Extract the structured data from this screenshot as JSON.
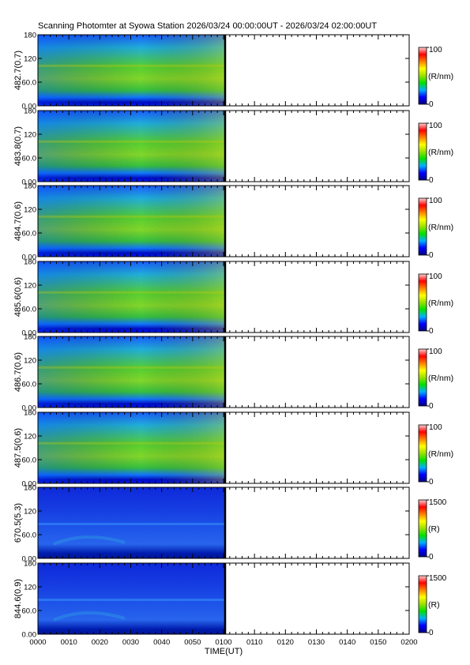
{
  "title": "Scanning Photomter at Syowa Station 2026/03/24 00:00:00UT - 2026/03/24 02:00:00UT",
  "chart_data": {
    "type": "heatmap",
    "xlabel": "TIME(UT)",
    "x_ticks": [
      "0000",
      "0010",
      "0020",
      "0030",
      "0040",
      "0050",
      "0100",
      "0110",
      "0120",
      "0130",
      "0140",
      "0150",
      "0200"
    ],
    "xlim": [
      "0000",
      "0200"
    ],
    "data_extent_end": "0100",
    "ylim": [
      0,
      180
    ],
    "y_ticks": [
      "0.00",
      "60.0",
      "120",
      "180"
    ],
    "colormap": [
      "#000080",
      "#0000ff",
      "#00b0ff",
      "#00e000",
      "#9ae000",
      "#ffff00",
      "#ff8000",
      "#ff0000",
      "#ffd0d0"
    ],
    "panels": [
      {
        "label": "482.7(0.7)",
        "unit": "(R/nm)",
        "cmin": "0",
        "cmax": "100",
        "style": "green"
      },
      {
        "label": "483.8(0.7)",
        "unit": "(R/nm)",
        "cmin": "0",
        "cmax": "100",
        "style": "green"
      },
      {
        "label": "484.7(0.6)",
        "unit": "(R/nm)",
        "cmin": "0",
        "cmax": "100",
        "style": "green"
      },
      {
        "label": "485.6(0.6)",
        "unit": "(R/nm)",
        "cmin": "0",
        "cmax": "100",
        "style": "green"
      },
      {
        "label": "486.7(0.6)",
        "unit": "(R/nm)",
        "cmin": "0",
        "cmax": "100",
        "style": "green"
      },
      {
        "label": "487.5(0.6)",
        "unit": "(R/nm)",
        "cmin": "0",
        "cmax": "100",
        "style": "green"
      },
      {
        "label": "670.5(5.3)",
        "unit": "(R)",
        "cmin": "0",
        "cmax": "1500",
        "style": "blue"
      },
      {
        "label": "844.6(0.9)",
        "unit": "(R)",
        "cmin": "0",
        "cmax": "1500",
        "style": "blue"
      }
    ]
  }
}
